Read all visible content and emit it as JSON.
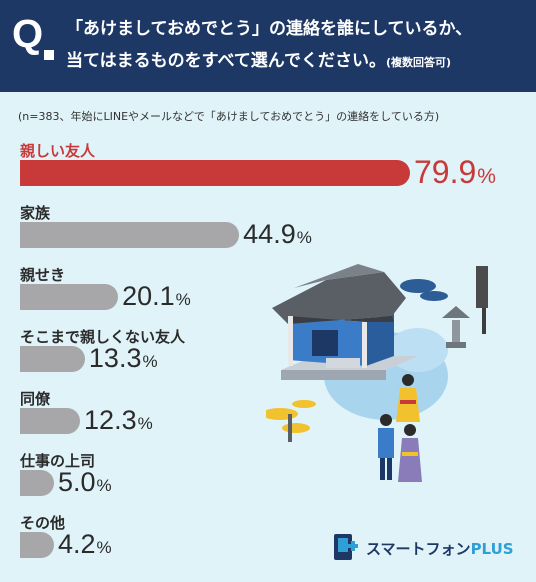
{
  "question": {
    "mark": "Q",
    "line1": "「あけましておめでとう」の連絡を誰にしているか、",
    "line2": "当てはまるものをすべて選んでください。",
    "note": "(複数回答可)"
  },
  "subnote": "(n=383、年始にLINEやメールなどで「あけましておめでとう」の連絡をしている方)",
  "chart_data": {
    "type": "bar",
    "orientation": "horizontal",
    "unit": "%",
    "categories": [
      "親しい友人",
      "家族",
      "親せき",
      "そこまで親しくない友人",
      "同僚",
      "仕事の上司",
      "その他"
    ],
    "values": [
      79.9,
      44.9,
      20.1,
      13.3,
      12.3,
      5.0,
      4.2
    ],
    "value_labels": [
      "79.9",
      "44.9",
      "20.1",
      "13.3",
      "12.3",
      "5.0",
      "4.2"
    ],
    "highlight_color": "#c83a3a",
    "bar_color": "#a7a7a9"
  },
  "logo": {
    "name": "スマートフォン",
    "suffix": "PLUS"
  },
  "colors": {
    "header": "#1e3866",
    "background": "#dff3f9"
  }
}
